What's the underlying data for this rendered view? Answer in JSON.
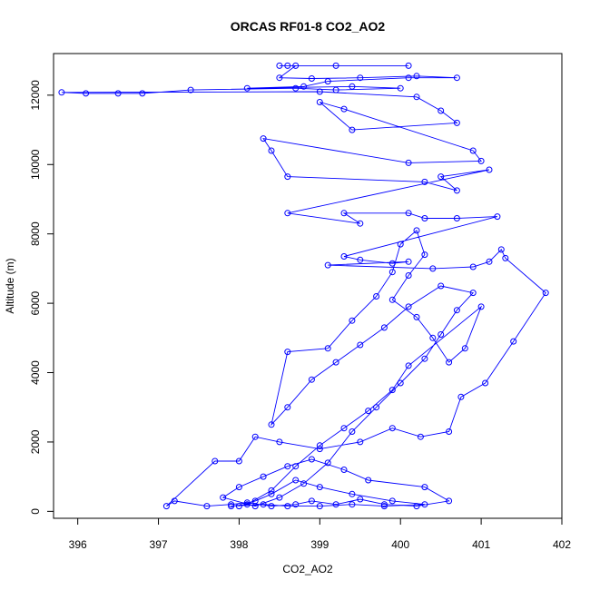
{
  "chart_data": {
    "type": "line",
    "title": "ORCAS RF01-8 CO2_AO2",
    "xlabel": "CO2_AO2",
    "ylabel": "Altitude (m)",
    "xlim": [
      395.7,
      402.0
    ],
    "ylim": [
      -200,
      13200
    ],
    "x_ticks": [
      396,
      397,
      398,
      399,
      400,
      401,
      402
    ],
    "y_ticks": [
      0,
      2000,
      4000,
      6000,
      8000,
      10000,
      12000
    ],
    "grid": false,
    "legend": "none",
    "marker": "open-circle",
    "color": "#0000ff",
    "series": [
      {
        "values": [
          [
            400.1,
            12850
          ],
          [
            399.2,
            12850
          ],
          [
            398.5,
            12850
          ],
          [
            398.6,
            12850
          ],
          [
            398.7,
            12850
          ],
          [
            398.5,
            12500
          ],
          [
            398.9,
            12480
          ],
          [
            399.5,
            12500
          ],
          [
            400.2,
            12550
          ],
          [
            400.7,
            12500
          ],
          [
            400.1,
            12500
          ],
          [
            399.1,
            12400
          ],
          [
            398.8,
            12250
          ],
          [
            398.1,
            12200
          ],
          [
            399.4,
            12250
          ],
          [
            400.0,
            12200
          ],
          [
            399.2,
            12150
          ],
          [
            398.7,
            12200
          ],
          [
            397.4,
            12150
          ],
          [
            396.8,
            12050
          ],
          [
            396.5,
            12050
          ],
          [
            396.1,
            12050
          ],
          [
            395.8,
            12080
          ],
          [
            399.0,
            12100
          ],
          [
            400.2,
            11950
          ],
          [
            400.5,
            11550
          ],
          [
            400.7,
            11200
          ],
          [
            399.4,
            11000
          ],
          [
            399.0,
            11800
          ],
          [
            399.3,
            11600
          ],
          [
            400.9,
            10400
          ],
          [
            401.0,
            10100
          ],
          [
            400.1,
            10050
          ],
          [
            398.3,
            10750
          ],
          [
            398.4,
            10400
          ],
          [
            398.6,
            9650
          ],
          [
            400.3,
            9500
          ],
          [
            400.7,
            9250
          ],
          [
            400.5,
            9650
          ],
          [
            401.1,
            9850
          ],
          [
            398.6,
            8600
          ],
          [
            399.5,
            8300
          ],
          [
            399.3,
            8600
          ],
          [
            400.1,
            8600
          ],
          [
            400.3,
            8450
          ],
          [
            400.7,
            8450
          ],
          [
            401.2,
            8500
          ],
          [
            399.3,
            7350
          ],
          [
            399.5,
            7250
          ],
          [
            399.9,
            7150
          ],
          [
            400.1,
            7200
          ],
          [
            399.1,
            7100
          ],
          [
            400.4,
            7000
          ],
          [
            400.9,
            7050
          ],
          [
            401.1,
            7200
          ],
          [
            401.25,
            7550
          ],
          [
            401.3,
            7300
          ],
          [
            401.8,
            6300
          ],
          [
            401.4,
            4900
          ],
          [
            401.05,
            3700
          ],
          [
            400.75,
            3300
          ],
          [
            400.6,
            2300
          ],
          [
            400.25,
            2150
          ],
          [
            399.9,
            2400
          ],
          [
            399.5,
            2000
          ],
          [
            399.0,
            1800
          ],
          [
            398.5,
            2000
          ],
          [
            398.2,
            2150
          ],
          [
            398.0,
            1450
          ],
          [
            397.7,
            1450
          ],
          [
            397.1,
            150
          ],
          [
            397.2,
            300
          ],
          [
            397.6,
            150
          ],
          [
            397.9,
            200
          ],
          [
            398.1,
            250
          ],
          [
            398.4,
            150
          ],
          [
            398.7,
            200
          ],
          [
            398.9,
            300
          ],
          [
            399.2,
            200
          ],
          [
            399.5,
            350
          ],
          [
            399.8,
            200
          ],
          [
            400.2,
            150
          ],
          [
            400.6,
            300
          ],
          [
            400.3,
            700
          ],
          [
            399.6,
            900
          ],
          [
            399.3,
            1200
          ],
          [
            398.9,
            1500
          ],
          [
            398.6,
            1300
          ],
          [
            398.3,
            1000
          ],
          [
            398.0,
            700
          ],
          [
            397.8,
            400
          ],
          [
            398.2,
            150
          ],
          [
            398.5,
            400
          ],
          [
            398.8,
            800
          ],
          [
            399.1,
            1400
          ],
          [
            399.4,
            2300
          ],
          [
            399.7,
            3000
          ],
          [
            400.0,
            3700
          ],
          [
            400.3,
            4400
          ],
          [
            400.5,
            5100
          ],
          [
            400.7,
            5800
          ],
          [
            400.9,
            6300
          ],
          [
            400.5,
            6500
          ],
          [
            400.1,
            5900
          ],
          [
            399.8,
            5300
          ],
          [
            399.5,
            4800
          ],
          [
            399.2,
            4300
          ],
          [
            398.9,
            3800
          ],
          [
            398.6,
            3000
          ],
          [
            398.4,
            2500
          ],
          [
            398.6,
            4600
          ],
          [
            399.1,
            4700
          ],
          [
            399.4,
            5500
          ],
          [
            399.7,
            6200
          ],
          [
            399.9,
            6900
          ],
          [
            400.0,
            7700
          ],
          [
            400.2,
            8100
          ],
          [
            400.3,
            7400
          ],
          [
            400.1,
            6800
          ],
          [
            399.9,
            6100
          ],
          [
            400.2,
            5600
          ],
          [
            400.4,
            5000
          ],
          [
            400.6,
            4300
          ],
          [
            400.8,
            4700
          ],
          [
            401.0,
            5900
          ],
          [
            400.1,
            4200
          ],
          [
            399.9,
            3500
          ],
          [
            399.6,
            2900
          ],
          [
            399.3,
            2400
          ],
          [
            399.0,
            1900
          ],
          [
            398.7,
            1300
          ],
          [
            398.4,
            600
          ],
          [
            398.1,
            200
          ],
          [
            397.9,
            150
          ],
          [
            398.3,
            200
          ],
          [
            398.6,
            150
          ],
          [
            399.0,
            150
          ],
          [
            399.4,
            200
          ],
          [
            399.8,
            150
          ],
          [
            400.3,
            200
          ],
          [
            399.9,
            300
          ],
          [
            399.4,
            500
          ],
          [
            399.0,
            700
          ],
          [
            398.7,
            900
          ],
          [
            398.4,
            500
          ],
          [
            398.2,
            300
          ],
          [
            398.0,
            150
          ]
        ]
      }
    ]
  }
}
